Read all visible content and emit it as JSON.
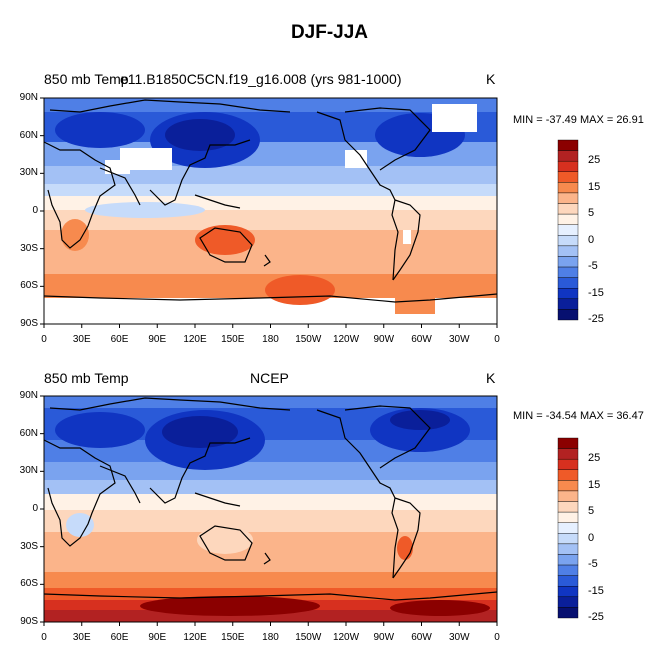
{
  "figure": {
    "title": "DJF-JJA"
  },
  "panels": [
    {
      "left_title": "850 mb Temp",
      "center_title": "e11.B1850C5CN.f19_g16.008 (yrs 981-1000)",
      "units": "K",
      "min_max": "MIN = -37.49 MAX =  26.91",
      "lat_ticks": [
        "90N",
        "60N",
        "30N",
        "0",
        "30S",
        "60S",
        "90S"
      ],
      "lon_ticks": [
        "0",
        "30E",
        "60E",
        "90E",
        "120E",
        "150E",
        "180",
        "150W",
        "120W",
        "90W",
        "60W",
        "30W",
        "0"
      ]
    },
    {
      "left_title": "850 mb Temp",
      "center_title": "NCEP",
      "units": "K",
      "min_max": "MIN = -34.54 MAX =  36.47",
      "lat_ticks": [
        "90N",
        "60N",
        "30N",
        "0",
        "30S",
        "60S",
        "90S"
      ],
      "lon_ticks": [
        "0",
        "30E",
        "60E",
        "90E",
        "120E",
        "150E",
        "180",
        "150W",
        "120W",
        "90W",
        "60W",
        "30W",
        "0"
      ]
    }
  ],
  "colorbar": {
    "labels": [
      "25",
      "15",
      "5",
      "0",
      "-5",
      "-15",
      "-25"
    ],
    "colors": [
      "#8b0000",
      "#b22222",
      "#d7301f",
      "#ef5a28",
      "#f78a4e",
      "#fbb48a",
      "#fdd7bd",
      "#fff2e6",
      "#e6f0ff",
      "#c6dbfa",
      "#a3c1f5",
      "#7aa3ef",
      "#4f7fe6",
      "#2a5ad8",
      "#1035c2",
      "#0a1f9a",
      "#071070"
    ]
  },
  "chart_data": [
    {
      "type": "heatmap",
      "title": "850 mb Temp e11.B1850C5CN.f19_g16.008 (yrs 981-1000)",
      "units": "K",
      "min": -37.49,
      "max": 26.91,
      "xlim": [
        0,
        360
      ],
      "ylim": [
        -90,
        90
      ],
      "levels": [
        -25,
        -20,
        -15,
        -10,
        -5,
        0,
        5,
        10,
        15,
        20,
        25
      ]
    },
    {
      "type": "heatmap",
      "title": "850 mb Temp NCEP",
      "units": "K",
      "min": -34.54,
      "max": 36.47,
      "xlim": [
        0,
        360
      ],
      "ylim": [
        -90,
        90
      ],
      "levels": [
        -25,
        -20,
        -15,
        -10,
        -5,
        0,
        5,
        10,
        15,
        20,
        25
      ]
    }
  ]
}
